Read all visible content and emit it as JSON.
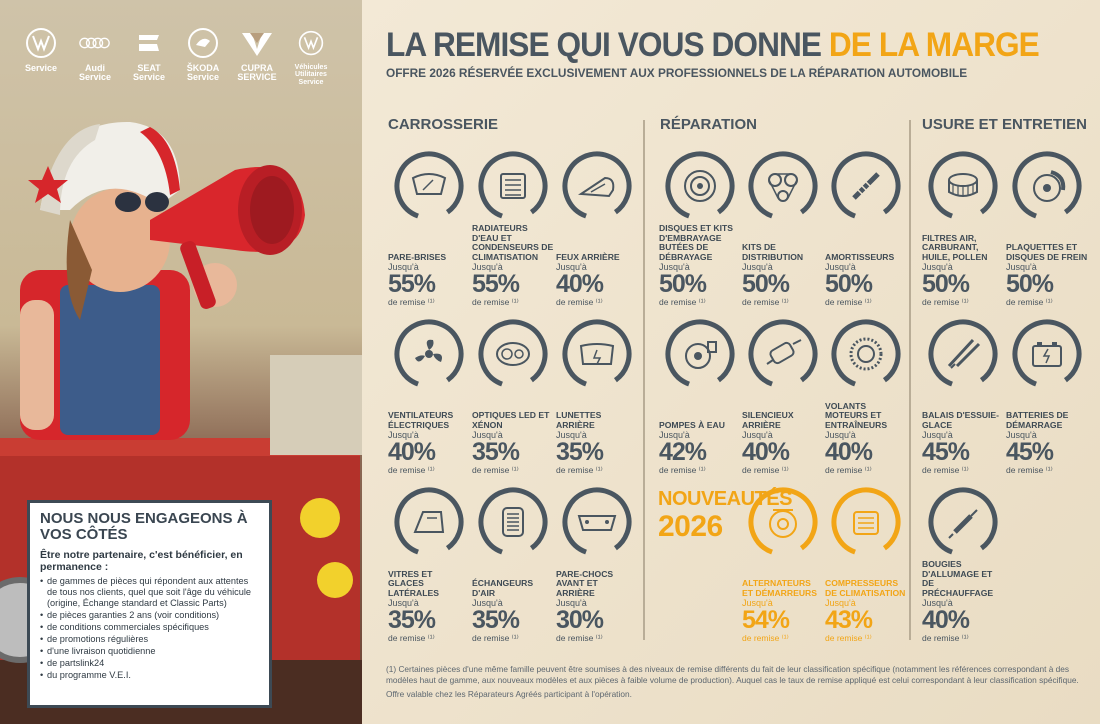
{
  "logos": [
    {
      "name": "vw-logo",
      "label": "Service"
    },
    {
      "name": "audi-logo",
      "label": "Audi Service"
    },
    {
      "name": "seat-logo",
      "label": "SEAT Service"
    },
    {
      "name": "skoda-logo",
      "label": "ŠKODA Service"
    },
    {
      "name": "cupra-logo",
      "label": "CUPRA SERVICE"
    },
    {
      "name": "vw-commercial-logo",
      "label": "Véhicules Utilitaires Service"
    }
  ],
  "header": {
    "title_main": "LA REMISE QUI VOUS DONNE ",
    "title_highlight": "DE LA MARGE",
    "subtitle": "OFFRE 2026 RÉSERVÉE EXCLUSIVEMENT AUX PROFESSIONNELS DE LA RÉPARATION AUTOMOBILE"
  },
  "sections": {
    "carrosserie": "CARROSSERIE",
    "reparation": "RÉPARATION",
    "usure": "USURE ET ENTRETIEN"
  },
  "labels": {
    "jusqua": "Jusqu'à",
    "remise": "de remise ⁽¹⁾"
  },
  "nouveautes": {
    "line1": "NOUVEAUTÉS",
    "line2": "2026"
  },
  "items": [
    {
      "name": "Pare-brises",
      "pct": "55%",
      "icon": "windshield-icon"
    },
    {
      "name": "Radiateurs d'eau et condenseurs de climatisation",
      "pct": "55%",
      "icon": "radiator-icon"
    },
    {
      "name": "Feux arrière",
      "pct": "40%",
      "icon": "taillight-icon"
    },
    {
      "name": "Ventilateurs électriques",
      "pct": "40%",
      "icon": "fan-icon"
    },
    {
      "name": "Optiques LED et xénon",
      "pct": "35%",
      "icon": "headlight-icon"
    },
    {
      "name": "Lunettes arrière",
      "pct": "35%",
      "icon": "rear-window-icon"
    },
    {
      "name": "Vitres et glaces latérales",
      "pct": "35%",
      "icon": "side-window-icon"
    },
    {
      "name": "Échangeurs d'air",
      "pct": "35%",
      "icon": "air-exchanger-icon"
    },
    {
      "name": "Pare-chocs avant et arrière",
      "pct": "30%",
      "icon": "bumper-icon"
    },
    {
      "name": "Disques et kits d'embrayage butées de débrayage",
      "pct": "50%",
      "icon": "clutch-icon"
    },
    {
      "name": "Kits de distribution",
      "pct": "50%",
      "icon": "timing-belt-icon"
    },
    {
      "name": "Amortisseurs",
      "pct": "50%",
      "icon": "shock-absorber-icon"
    },
    {
      "name": "Pompes à eau",
      "pct": "42%",
      "icon": "water-pump-icon"
    },
    {
      "name": "Silencieux arrière",
      "pct": "40%",
      "icon": "muffler-icon"
    },
    {
      "name": "Volants moteurs et entraîneurs",
      "pct": "40%",
      "icon": "flywheel-icon"
    },
    {
      "name": "Alternateurs et démarreurs",
      "pct": "54%",
      "icon": "alternator-icon"
    },
    {
      "name": "Compresseurs de climatisation",
      "pct": "43%",
      "icon": "ac-compressor-icon"
    },
    {
      "name": "Filtres air, carburant, huile, pollen",
      "pct": "50%",
      "icon": "filter-icon"
    },
    {
      "name": "Plaquettes et disques de frein",
      "pct": "50%",
      "icon": "brake-icon"
    },
    {
      "name": "Balais d'essuie-glace",
      "pct": "45%",
      "icon": "wiper-icon"
    },
    {
      "name": "Batteries de démarrage",
      "pct": "45%",
      "icon": "battery-icon"
    },
    {
      "name": "Bougies d'allumage et de préchauffage",
      "pct": "40%",
      "icon": "spark-plug-icon"
    }
  ],
  "engage": {
    "title": "NOUS NOUS ENGAGEONS À VOS CÔTÉS",
    "intro": "Être notre partenaire, c'est bénéficier, en permanence :",
    "bullets": [
      "de gammes de pièces qui répondent aux attentes de tous nos clients, quel que soit l'âge du véhicule (origine, Échange standard et Classic Parts)",
      "de pièces garanties 2 ans (voir conditions)",
      "de conditions commerciales spécifiques",
      "de promotions régulières",
      "d'une livraison quotidienne",
      "de partslink24",
      "du programme V.E.I."
    ]
  },
  "footnote": {
    "line1": "(1) Certaines pièces d'une même famille peuvent être soumises à des niveaux de remise différents du fait de leur classification spécifique (notamment les références correspondant à des modèles haut de gamme, aux nouveaux modèles et aux pièces à faible volume de production). Auquel cas le taux de remise appliqué est celui correspondant à leur classification spécifique.",
    "line2": "Offre valable chez les Réparateurs Agréés participant à l'opération."
  },
  "colors": {
    "accent": "#f2a516",
    "text": "#4a5660",
    "bg": "#efe4cf"
  }
}
